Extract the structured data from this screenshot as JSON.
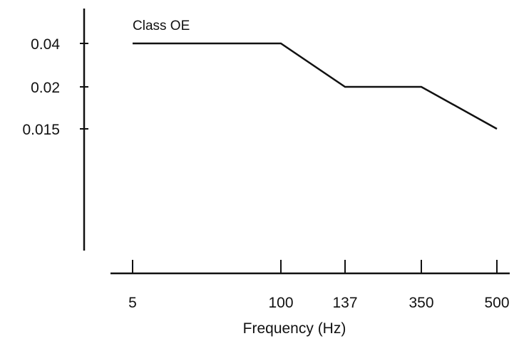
{
  "chart_data": {
    "type": "line",
    "title": "",
    "xlabel": "Frequency (Hz)",
    "ylabel": "",
    "x_ticks": [
      "5",
      "100",
      "137",
      "350",
      "500"
    ],
    "y_ticks": [
      "0.04",
      "0.02",
      "0.015"
    ],
    "series": [
      {
        "name": "Class OE",
        "points": [
          {
            "x": "5",
            "y": 0.04
          },
          {
            "x": "100",
            "y": 0.04
          },
          {
            "x": "137",
            "y": 0.02
          },
          {
            "x": "350",
            "y": 0.02
          },
          {
            "x": "500",
            "y": 0.015
          }
        ]
      }
    ],
    "grid": false,
    "colors": {
      "line": "#111111",
      "axis": "#111111"
    }
  }
}
